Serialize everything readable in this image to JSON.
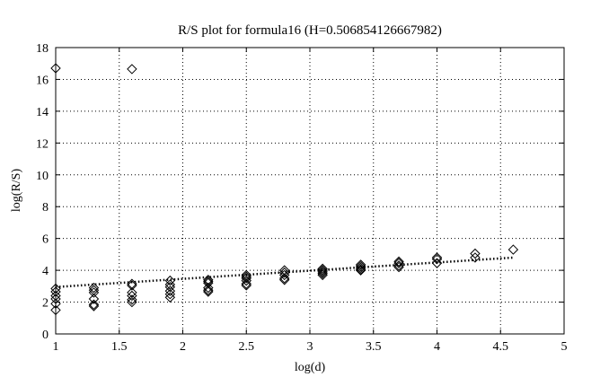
{
  "chart_data": {
    "type": "scatter",
    "title": "R/S plot for formula16 (H=0.506854126667982)",
    "xlabel": "log(d)",
    "ylabel": "log(R/S)",
    "xlim": [
      1,
      5
    ],
    "ylim": [
      0,
      18
    ],
    "xticks": [
      "1",
      "1.5",
      "2",
      "2.5",
      "3",
      "3.5",
      "4",
      "4.5",
      "5"
    ],
    "yticks": [
      "0",
      "2",
      "4",
      "6",
      "8",
      "10",
      "12",
      "14",
      "16",
      "18"
    ],
    "grid": true,
    "marker": "diamond",
    "points": [
      {
        "x": 1.0,
        "y": 16.7
      },
      {
        "x": 1.0,
        "y": 2.85
      },
      {
        "x": 1.0,
        "y": 2.65
      },
      {
        "x": 1.0,
        "y": 2.4
      },
      {
        "x": 1.0,
        "y": 2.2
      },
      {
        "x": 1.0,
        "y": 1.9
      },
      {
        "x": 1.0,
        "y": 1.5
      },
      {
        "x": 1.3,
        "y": 2.9
      },
      {
        "x": 1.3,
        "y": 2.75
      },
      {
        "x": 1.3,
        "y": 2.6
      },
      {
        "x": 1.3,
        "y": 2.2
      },
      {
        "x": 1.3,
        "y": 1.85
      },
      {
        "x": 1.3,
        "y": 1.75
      },
      {
        "x": 1.6,
        "y": 16.65
      },
      {
        "x": 1.6,
        "y": 3.15
      },
      {
        "x": 1.6,
        "y": 3.05
      },
      {
        "x": 1.6,
        "y": 2.6
      },
      {
        "x": 1.6,
        "y": 2.4
      },
      {
        "x": 1.6,
        "y": 2.15
      },
      {
        "x": 1.6,
        "y": 2.0
      },
      {
        "x": 1.9,
        "y": 3.35
      },
      {
        "x": 1.9,
        "y": 3.1
      },
      {
        "x": 1.9,
        "y": 2.95
      },
      {
        "x": 1.9,
        "y": 2.7
      },
      {
        "x": 1.9,
        "y": 2.5
      },
      {
        "x": 1.9,
        "y": 2.3
      },
      {
        "x": 2.2,
        "y": 3.4
      },
      {
        "x": 2.2,
        "y": 3.3
      },
      {
        "x": 2.2,
        "y": 3.2
      },
      {
        "x": 2.2,
        "y": 2.9
      },
      {
        "x": 2.2,
        "y": 2.75
      },
      {
        "x": 2.2,
        "y": 2.65
      },
      {
        "x": 2.5,
        "y": 3.7
      },
      {
        "x": 2.5,
        "y": 3.6
      },
      {
        "x": 2.5,
        "y": 3.5
      },
      {
        "x": 2.5,
        "y": 3.35
      },
      {
        "x": 2.5,
        "y": 3.15
      },
      {
        "x": 2.5,
        "y": 3.05
      },
      {
        "x": 2.8,
        "y": 4.0
      },
      {
        "x": 2.8,
        "y": 3.85
      },
      {
        "x": 2.8,
        "y": 3.7
      },
      {
        "x": 2.8,
        "y": 3.5
      },
      {
        "x": 2.8,
        "y": 3.4
      },
      {
        "x": 3.1,
        "y": 4.1
      },
      {
        "x": 3.1,
        "y": 4.0
      },
      {
        "x": 3.1,
        "y": 3.9
      },
      {
        "x": 3.1,
        "y": 3.8
      },
      {
        "x": 3.1,
        "y": 3.7
      },
      {
        "x": 3.4,
        "y": 4.35
      },
      {
        "x": 3.4,
        "y": 4.25
      },
      {
        "x": 3.4,
        "y": 4.15
      },
      {
        "x": 3.4,
        "y": 4.05
      },
      {
        "x": 3.4,
        "y": 4.0
      },
      {
        "x": 3.7,
        "y": 4.55
      },
      {
        "x": 3.7,
        "y": 4.45
      },
      {
        "x": 3.7,
        "y": 4.3
      },
      {
        "x": 3.7,
        "y": 4.2
      },
      {
        "x": 4.0,
        "y": 4.8
      },
      {
        "x": 4.0,
        "y": 4.7
      },
      {
        "x": 4.0,
        "y": 4.45
      },
      {
        "x": 4.3,
        "y": 5.05
      },
      {
        "x": 4.3,
        "y": 4.8
      },
      {
        "x": 4.6,
        "y": 5.3
      }
    ],
    "fit_line": {
      "x": [
        1.0,
        4.6
      ],
      "y": [
        2.95,
        4.8
      ]
    }
  }
}
